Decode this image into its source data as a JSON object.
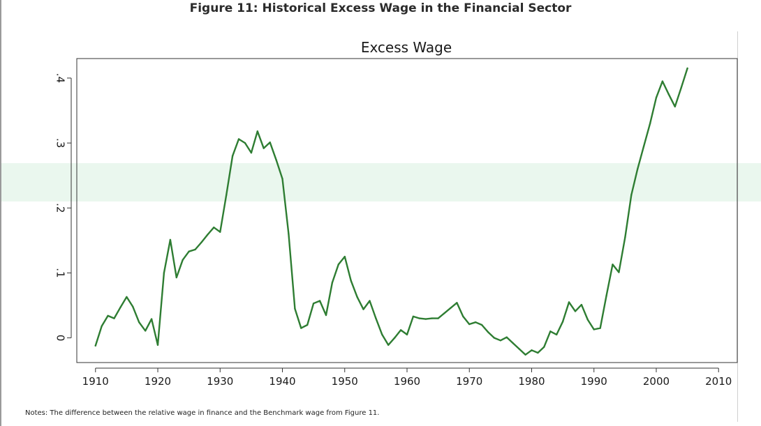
{
  "figure": {
    "title": "Figure 11: Historical Excess Wage in the Financial Sector",
    "notes": "Notes: The difference between the relative wage in finance and the Benchmark wage from Figure 11."
  },
  "chart_data": {
    "type": "line",
    "title": "Excess Wage",
    "xlabel": "",
    "ylabel": "",
    "xlim": [
      1907,
      2013
    ],
    "ylim": [
      -0.038,
      0.43
    ],
    "x_ticks": [
      1910,
      1920,
      1930,
      1940,
      1950,
      1960,
      1970,
      1980,
      1990,
      2000,
      2010
    ],
    "x_tick_labels": [
      "1910",
      "1920",
      "1930",
      "1940",
      "1950",
      "1960",
      "1970",
      "1980",
      "1990",
      "2000",
      "2010"
    ],
    "y_ticks": [
      0,
      0.1,
      0.2,
      0.3,
      0.4
    ],
    "y_tick_labels": [
      "0",
      ".1",
      ".2",
      ".3",
      ".4"
    ],
    "grid": false,
    "line_color": "#2e7d32",
    "band_color": "#eaf7ee",
    "series": [
      {
        "x": [
          1910,
          1911,
          1912,
          1913,
          1914,
          1915,
          1916,
          1917,
          1918,
          1919,
          1920,
          1921,
          1922,
          1923,
          1924,
          1925,
          1926,
          1927,
          1928,
          1929,
          1930,
          1931,
          1932,
          1933,
          1934,
          1935,
          1936,
          1937,
          1938,
          1939,
          1940,
          1941,
          1942,
          1943,
          1944,
          1945,
          1946,
          1947,
          1948,
          1949,
          1950,
          1951,
          1952,
          1953,
          1954,
          1955,
          1956,
          1957,
          1958,
          1959,
          1960,
          1961,
          1962,
          1963,
          1964,
          1965,
          1966,
          1967,
          1968,
          1969,
          1970,
          1971,
          1972,
          1973,
          1974,
          1975,
          1976,
          1977,
          1978,
          1979,
          1980,
          1981,
          1982,
          1983,
          1984,
          1985,
          1986,
          1987,
          1988,
          1989,
          1990,
          1991,
          1992,
          1993,
          1994,
          1995,
          1996,
          1997,
          1998,
          1999,
          2000,
          2001,
          2002,
          2003,
          2004,
          2005
        ],
        "y": [
          -0.012,
          0.018,
          0.034,
          0.03,
          0.047,
          0.063,
          0.048,
          0.024,
          0.011,
          0.029,
          -0.011,
          0.1,
          0.151,
          0.093,
          0.12,
          0.133,
          0.136,
          0.147,
          0.159,
          0.17,
          0.163,
          0.22,
          0.28,
          0.306,
          0.3,
          0.285,
          0.318,
          0.292,
          0.301,
          0.274,
          0.245,
          0.16,
          0.045,
          0.015,
          0.02,
          0.053,
          0.057,
          0.035,
          0.085,
          0.113,
          0.125,
          0.088,
          0.063,
          0.044,
          0.057,
          0.03,
          0.005,
          -0.011,
          0.0,
          0.012,
          0.005,
          0.033,
          0.03,
          0.029,
          0.03,
          0.03,
          0.038,
          0.046,
          0.054,
          0.033,
          0.021,
          0.024,
          0.02,
          0.009,
          0.0,
          -0.004,
          0.001,
          -0.008,
          -0.017,
          -0.026,
          -0.019,
          -0.023,
          -0.014,
          0.01,
          0.005,
          0.025,
          0.055,
          0.041,
          0.051,
          0.028,
          0.013,
          0.015,
          0.065,
          0.113,
          0.101,
          0.155,
          0.22,
          0.26,
          0.295,
          0.33,
          0.37,
          0.395,
          0.375,
          0.356,
          0.385,
          0.415
        ]
      }
    ]
  }
}
